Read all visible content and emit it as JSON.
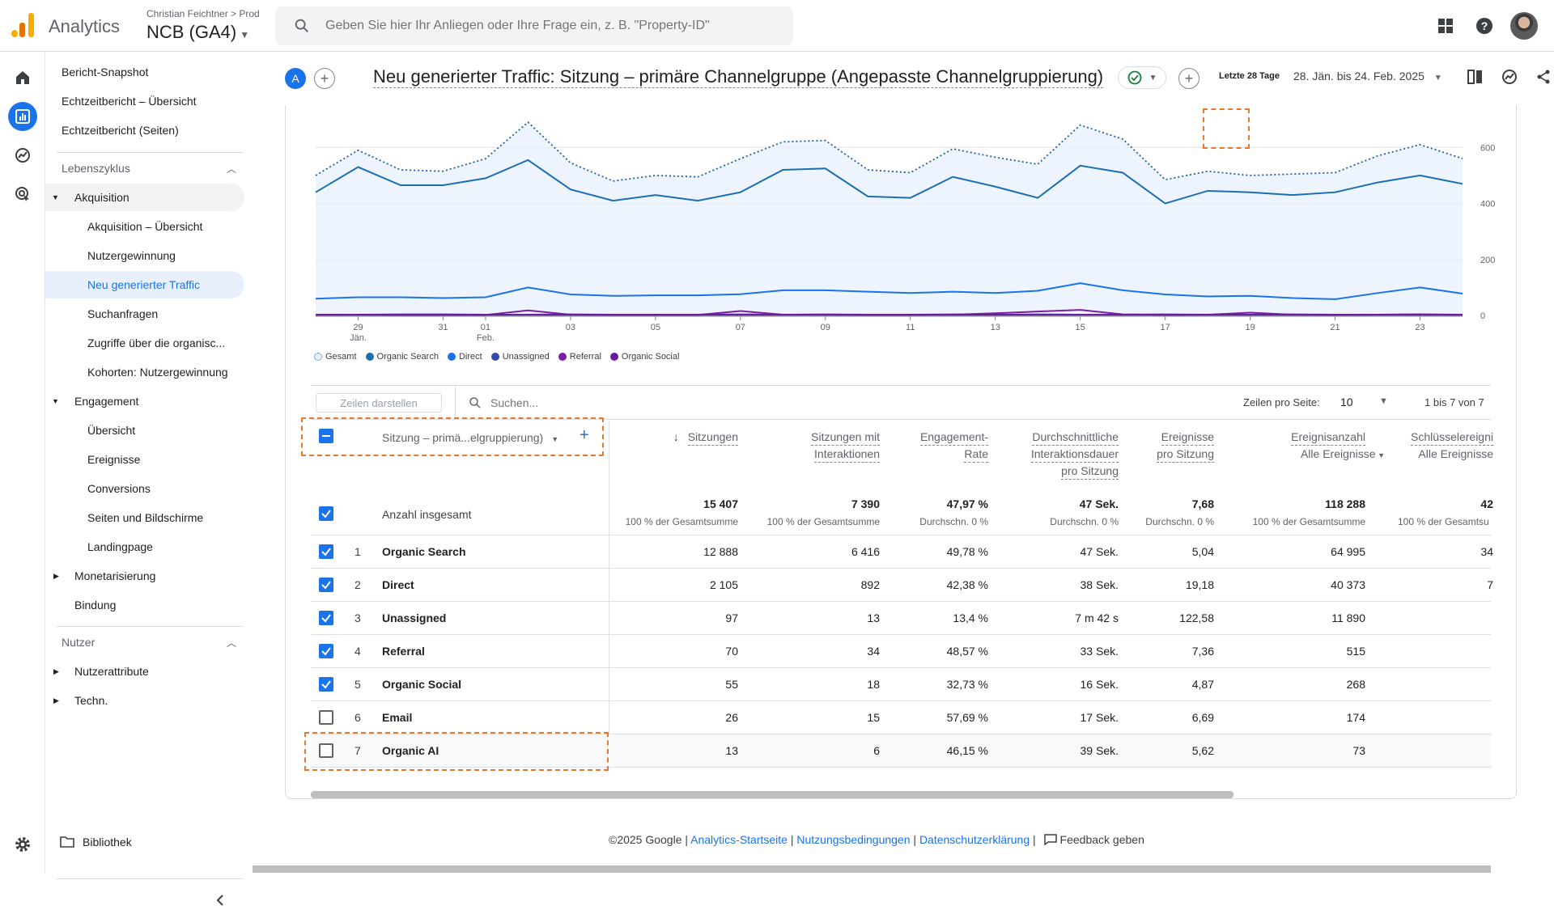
{
  "header": {
    "app_name": "Analytics",
    "account_path": "Christian Feichtner  >  Prod",
    "property": "NCB (GA4)",
    "search_placeholder": "Geben Sie hier Ihr Anliegen oder Ihre Frage ein, z. B. \"Property-ID\""
  },
  "nav": {
    "items": [
      {
        "label": "Bericht-Snapshot"
      },
      {
        "label": "Echtzeitbericht – Übersicht"
      },
      {
        "label": "Echtzeitbericht (Seiten)"
      }
    ],
    "lifecycle_label": "Lebenszyklus",
    "acquisition_label": "Akquisition",
    "acquisition_items": [
      "Akquisition – Übersicht",
      "Nutzergewinnung",
      "Neu generierter Traffic",
      "Suchanfragen",
      "Zugriffe über die organisc...",
      "Kohorten: Nutzergewinnung"
    ],
    "engagement_label": "Engagement",
    "engagement_items": [
      "Übersicht",
      "Ereignisse",
      "Conversions",
      "Seiten und Bildschirme",
      "Landingpage"
    ],
    "monetization_label": "Monetarisierung",
    "retention_label": "Bindung",
    "user_label": "Nutzer",
    "user_attr_label": "Nutzerattribute",
    "tech_label": "Techn.",
    "library_label": "Bibliothek"
  },
  "report": {
    "comparison_chip": "A",
    "title": "Neu generierter Traffic: Sitzung – primäre Channelgruppe (Angepasste Channelgruppierung)",
    "period_label": "Letzte 28 Tage",
    "period_value": "28. Jän. bis 24. Feb. 2025"
  },
  "chart_data": {
    "type": "line",
    "x": [
      "28",
      "29",
      "30",
      "31",
      "01",
      "02",
      "03",
      "04",
      "05",
      "06",
      "07",
      "08",
      "09",
      "10",
      "11",
      "12",
      "13",
      "14",
      "15",
      "16",
      "17",
      "18",
      "19",
      "20",
      "21",
      "22",
      "23",
      "24"
    ],
    "x_tick_labels": [
      {
        "label": "29",
        "sub": "Jän.",
        "index": 1
      },
      {
        "label": "31",
        "sub": "",
        "index": 3
      },
      {
        "label": "01",
        "sub": "Feb.",
        "index": 4
      },
      {
        "label": "03",
        "sub": "",
        "index": 6
      },
      {
        "label": "05",
        "sub": "",
        "index": 8
      },
      {
        "label": "07",
        "sub": "",
        "index": 10
      },
      {
        "label": "09",
        "sub": "",
        "index": 12
      },
      {
        "label": "11",
        "sub": "",
        "index": 14
      },
      {
        "label": "13",
        "sub": "",
        "index": 16
      },
      {
        "label": "15",
        "sub": "",
        "index": 18
      },
      {
        "label": "17",
        "sub": "",
        "index": 20
      },
      {
        "label": "19",
        "sub": "",
        "index": 22
      },
      {
        "label": "21",
        "sub": "",
        "index": 24
      },
      {
        "label": "23",
        "sub": "",
        "index": 26
      }
    ],
    "y_ticks": [
      0,
      200,
      400,
      600
    ],
    "ylim": [
      0,
      780
    ],
    "series": [
      {
        "name": "Gesamt",
        "color": "#1f5fa8",
        "dashed": true,
        "values": [
          500,
          590,
          520,
          515,
          560,
          690,
          545,
          480,
          500,
          495,
          560,
          620,
          625,
          520,
          510,
          595,
          565,
          540,
          680,
          630,
          485,
          515,
          500,
          505,
          510,
          570,
          610,
          560
        ]
      },
      {
        "name": "Organic Search",
        "color": "#1a6fb3",
        "dashed": false,
        "values": [
          440,
          530,
          465,
          465,
          490,
          555,
          450,
          410,
          430,
          410,
          440,
          520,
          525,
          425,
          420,
          495,
          460,
          420,
          535,
          510,
          400,
          445,
          440,
          430,
          440,
          475,
          500,
          470
        ]
      },
      {
        "name": "Direct",
        "color": "#1a73e8",
        "dashed": false,
        "values": [
          60,
          65,
          65,
          62,
          65,
          100,
          75,
          70,
          72,
          72,
          76,
          90,
          90,
          85,
          80,
          85,
          80,
          88,
          115,
          90,
          75,
          68,
          70,
          62,
          58,
          80,
          100,
          78
        ]
      },
      {
        "name": "Unassigned",
        "color": "#3949ab",
        "dashed": false,
        "values": [
          3,
          3,
          4,
          4,
          3,
          3,
          4,
          3,
          3,
          3,
          4,
          3,
          4,
          3,
          3,
          4,
          3,
          4,
          3,
          3,
          4,
          3,
          3,
          4,
          3,
          3,
          4,
          3
        ]
      },
      {
        "name": "Referral",
        "color": "#7b1fa2",
        "dashed": false,
        "values": [
          2,
          3,
          2,
          2,
          2,
          18,
          3,
          2,
          2,
          2,
          16,
          3,
          3,
          2,
          2,
          3,
          8,
          14,
          20,
          4,
          2,
          3,
          10,
          3,
          2,
          3,
          4,
          2
        ]
      },
      {
        "name": "Organic Social",
        "color": "#6a1b9a",
        "dashed": false,
        "values": [
          2,
          2,
          2,
          2,
          2,
          2,
          2,
          2,
          2,
          2,
          2,
          2,
          2,
          2,
          2,
          2,
          2,
          2,
          2,
          2,
          2,
          2,
          2,
          2,
          2,
          2,
          2,
          2
        ]
      }
    ]
  },
  "table": {
    "rows_btn": "Zeilen darstellen",
    "search_placeholder": "Suchen...",
    "rows_per_page_label": "Zeilen pro Seite:",
    "rows_per_page_value": "10",
    "pager": "1 bis 7 von 7",
    "dimension_label": "Sitzung – primä...elgruppierung)",
    "columns": [
      {
        "l1": "Sitzungen",
        "l2": "",
        "l3": "",
        "sub": ""
      },
      {
        "l1": "Sitzungen mit",
        "l2": "Interaktionen",
        "l3": "",
        "sub": ""
      },
      {
        "l1": "Engagement-",
        "l2": "Rate",
        "l3": "",
        "sub": ""
      },
      {
        "l1": "Durchschnittliche",
        "l2": "Interaktionsdauer",
        "l3": "pro Sitzung",
        "sub": ""
      },
      {
        "l1": "Ereignisse",
        "l2": "pro Sitzung",
        "l3": "",
        "sub": ""
      },
      {
        "l1": "Ereignisanzahl",
        "l2": "",
        "l3": "",
        "sub": "Alle Ereignisse"
      },
      {
        "l1": "Schlüsselereigni",
        "l2": "",
        "l3": "",
        "sub": "Alle Ereignisse"
      }
    ],
    "total_label": "Anzahl insgesamt",
    "totals": [
      {
        "value": "15 407",
        "sub": "100 % der Gesamtsumme"
      },
      {
        "value": "7 390",
        "sub": "100 % der Gesamtsumme"
      },
      {
        "value": "47,97 %",
        "sub": "Durchschn. 0 %"
      },
      {
        "value": "47 Sek.",
        "sub": "Durchschn. 0 %"
      },
      {
        "value": "7,68",
        "sub": "Durchschn. 0 %"
      },
      {
        "value": "118 288",
        "sub": "100 % der Gesamtsumme"
      },
      {
        "value": "42",
        "sub": "100 % der Gesamtsu"
      }
    ],
    "rows": [
      {
        "idx": "1",
        "name": "Organic Search",
        "checked": true,
        "v": [
          "12 888",
          "6 416",
          "49,78 %",
          "47 Sek.",
          "5,04",
          "64 995",
          "34"
        ]
      },
      {
        "idx": "2",
        "name": "Direct",
        "checked": true,
        "v": [
          "2 105",
          "892",
          "42,38 %",
          "38 Sek.",
          "19,18",
          "40 373",
          "7"
        ]
      },
      {
        "idx": "3",
        "name": "Unassigned",
        "checked": true,
        "v": [
          "97",
          "13",
          "13,4 %",
          "7 m 42 s",
          "122,58",
          "11 890",
          ""
        ]
      },
      {
        "idx": "4",
        "name": "Referral",
        "checked": true,
        "v": [
          "70",
          "34",
          "48,57 %",
          "33 Sek.",
          "7,36",
          "515",
          ""
        ]
      },
      {
        "idx": "5",
        "name": "Organic Social",
        "checked": true,
        "v": [
          "55",
          "18",
          "32,73 %",
          "16 Sek.",
          "4,87",
          "268",
          ""
        ]
      },
      {
        "idx": "6",
        "name": "Email",
        "checked": false,
        "v": [
          "26",
          "15",
          "57,69 %",
          "17 Sek.",
          "6,69",
          "174",
          ""
        ]
      },
      {
        "idx": "7",
        "name": "Organic AI",
        "checked": false,
        "v": [
          "13",
          "6",
          "46,15 %",
          "39 Sek.",
          "5,62",
          "73",
          ""
        ]
      }
    ]
  },
  "footer": {
    "copyright": "©2025 Google | ",
    "link1": "Analytics-Startseite",
    "link2": "Nutzungsbedingungen",
    "link3": "Datenschutzerklärung",
    "feedback": "Feedback geben"
  }
}
